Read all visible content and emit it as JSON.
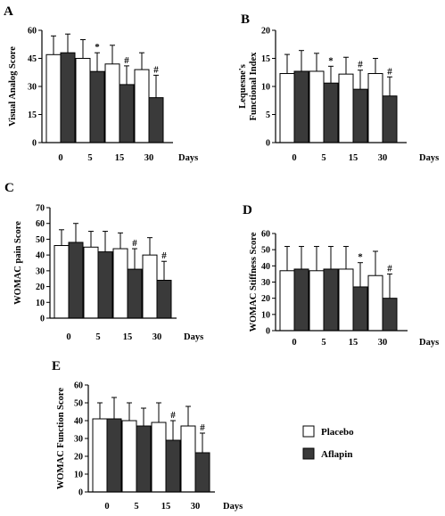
{
  "chart_data": [
    {
      "type": "bar",
      "panel": "A",
      "ylabel": "Visual Analog Score",
      "xlabel": "Days",
      "categories": [
        "0",
        "5",
        "15",
        "30"
      ],
      "ylim": [
        0,
        60
      ],
      "yticks": [
        0,
        15,
        30,
        45,
        60
      ],
      "series": [
        {
          "name": "Placebo",
          "values": [
            47,
            45,
            42,
            39
          ],
          "errors": [
            10,
            10,
            10,
            9
          ]
        },
        {
          "name": "Aflapin",
          "values": [
            48,
            38,
            31,
            24
          ],
          "errors": [
            10,
            10,
            10,
            12
          ]
        }
      ],
      "annotations": [
        "",
        "*",
        "#",
        "#"
      ]
    },
    {
      "type": "bar",
      "panel": "B",
      "ylabel": [
        "Lequesne's",
        "Functional Index"
      ],
      "xlabel": "Days",
      "categories": [
        "0",
        "5",
        "15",
        "30"
      ],
      "ylim": [
        0,
        20
      ],
      "yticks": [
        0,
        5,
        10,
        15,
        20
      ],
      "series": [
        {
          "name": "Placebo",
          "values": [
            12.3,
            12.7,
            12.2,
            12.3
          ],
          "errors": [
            3.4,
            3.2,
            3.0,
            2.7
          ]
        },
        {
          "name": "Aflapin",
          "values": [
            12.7,
            10.6,
            9.5,
            8.3
          ],
          "errors": [
            3.7,
            3.0,
            3.4,
            3.4
          ]
        }
      ],
      "annotations": [
        "",
        "*",
        "#",
        "#"
      ]
    },
    {
      "type": "bar",
      "panel": "C",
      "ylabel": "WOMAC pain Score",
      "xlabel": "Days",
      "categories": [
        "0",
        "5",
        "15",
        "30"
      ],
      "ylim": [
        0,
        70
      ],
      "yticks": [
        0,
        10,
        20,
        30,
        40,
        50,
        60,
        70
      ],
      "series": [
        {
          "name": "Placebo",
          "values": [
            46,
            45,
            44,
            40
          ],
          "errors": [
            10,
            10,
            10,
            11
          ]
        },
        {
          "name": "Aflapin",
          "values": [
            48,
            42,
            31,
            24
          ],
          "errors": [
            12,
            13,
            13,
            12
          ]
        }
      ],
      "annotations": [
        "",
        "",
        "#",
        "#"
      ]
    },
    {
      "type": "bar",
      "panel": "D",
      "ylabel": "WOMAC Stiffness Score",
      "xlabel": "Days",
      "categories": [
        "0",
        "5",
        "15",
        "30"
      ],
      "ylim": [
        0,
        60
      ],
      "yticks": [
        0,
        10,
        20,
        30,
        40,
        50,
        60
      ],
      "series": [
        {
          "name": "Placebo",
          "values": [
            37,
            37,
            38,
            34
          ],
          "errors": [
            15,
            15,
            14,
            15
          ]
        },
        {
          "name": "Aflapin",
          "values": [
            38,
            38,
            27,
            20
          ],
          "errors": [
            14,
            14,
            15,
            15
          ]
        }
      ],
      "annotations": [
        "",
        "",
        "*",
        "#"
      ]
    },
    {
      "type": "bar",
      "panel": "E",
      "ylabel": "WOMAC Function Score",
      "xlabel": "Days",
      "categories": [
        "0",
        "5",
        "15",
        "30"
      ],
      "ylim": [
        0,
        60
      ],
      "yticks": [
        0,
        10,
        20,
        30,
        40,
        50,
        60
      ],
      "series": [
        {
          "name": "Placebo",
          "values": [
            41,
            40,
            39,
            37
          ],
          "errors": [
            9,
            10,
            11,
            11
          ]
        },
        {
          "name": "Aflapin",
          "values": [
            41,
            37,
            29,
            22
          ],
          "errors": [
            12,
            10,
            11,
            11
          ]
        }
      ],
      "annotations": [
        "",
        "",
        "#",
        "#"
      ]
    }
  ],
  "legend": {
    "items": [
      {
        "label": "Placebo",
        "color": "#ffffff"
      },
      {
        "label": "Aflapin",
        "color": "#3a3a3a"
      }
    ]
  },
  "colors": {
    "placebo": "#ffffff",
    "aflapin": "#3a3a3a",
    "stroke": "#000000"
  }
}
